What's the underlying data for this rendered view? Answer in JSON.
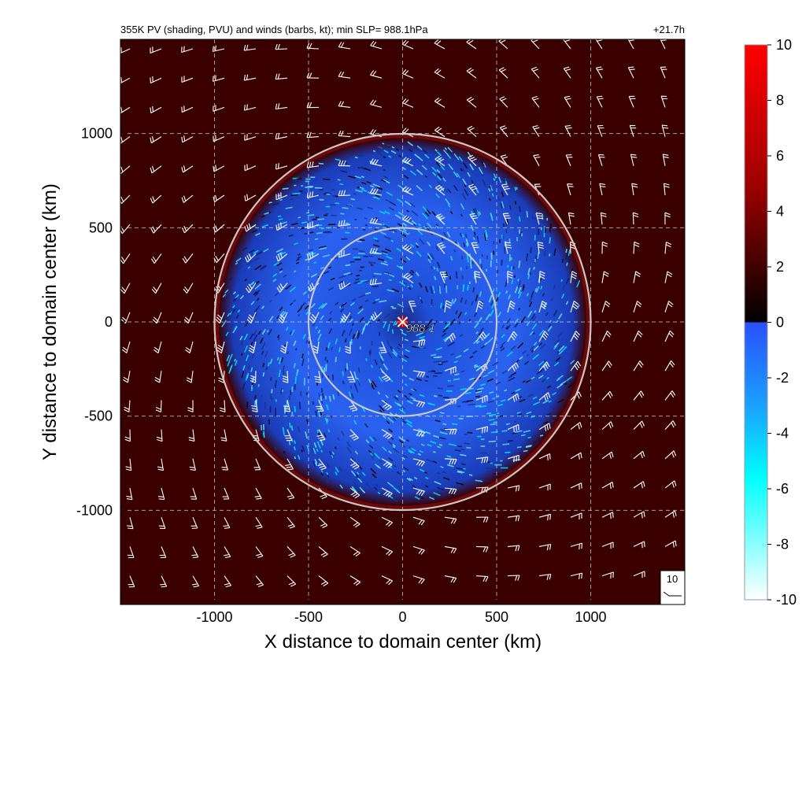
{
  "header": {
    "title": "355K PV (shading, PVU) and winds (barbs, kt); min SLP=  988.1hPa",
    "time": "+21.7h"
  },
  "center_label": "988.1",
  "reference_barb_label": "10",
  "chart_data": {
    "type": "heatmap",
    "title": "355K PV (shading, PVU) and winds (barbs, kt); min SLP=  988.1hPa",
    "xlabel": "X distance to domain center (km)",
    "ylabel": "Y distance to domain center (km)",
    "xlim": [
      -1500,
      1500
    ],
    "ylim": [
      -1500,
      1500
    ],
    "xticks": [
      -1000,
      -500,
      0,
      500,
      1000
    ],
    "yticks": [
      -1000,
      -500,
      0,
      500,
      1000
    ],
    "xtick_labels": [
      "-1000",
      "-500",
      "0",
      "500",
      "1000"
    ],
    "ytick_labels": [
      "1000",
      "500",
      "0",
      "-500",
      "-1000"
    ],
    "grid": true,
    "colorbar": {
      "range": [
        -10,
        10
      ],
      "ticks": [
        "10",
        "8",
        "6",
        "4",
        "2",
        "0",
        "-2",
        "-4",
        "-6",
        "-8",
        "-10"
      ],
      "colors_positive": [
        "#000000",
        "#400000",
        "#800000",
        "#c00000",
        "#ff0000"
      ],
      "colors_negative": [
        "#2a50ff",
        "#1aa0ff",
        "#00ffff",
        "#80ffff",
        "#ffffff"
      ]
    },
    "min_slp_hpa": 988.1,
    "min_slp_location_km": [
      0,
      0
    ],
    "rings_radius_km": [
      500,
      1000
    ],
    "background_pv_color": "#3a0000",
    "negative_region_radius_km": 980
  }
}
